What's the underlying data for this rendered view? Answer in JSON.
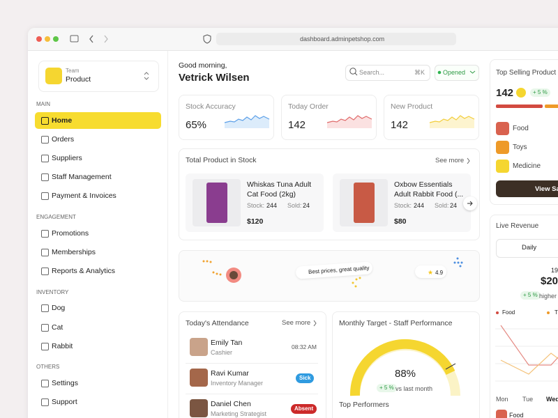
{
  "browser": {
    "url": "dashboard.adminpetshop.com"
  },
  "sidebar": {
    "team_label": "Team",
    "team_name": "Product",
    "sections": [
      {
        "title": "MAIN",
        "items": [
          "Home",
          "Orders",
          "Suppliers",
          "Staff Management",
          "Payment & Invoices"
        ]
      },
      {
        "title": "ENGAGEMENT",
        "items": [
          "Promotions",
          "Memberships",
          "Reports & Analytics"
        ]
      },
      {
        "title": "INVENTORY",
        "items": [
          "Dog",
          "Cat",
          "Rabbit"
        ]
      },
      {
        "title": "OTHERS",
        "items": [
          "Settings",
          "Support"
        ]
      }
    ]
  },
  "header": {
    "greeting": "Good morning,",
    "name": "Vetrick Wilsen",
    "search": "Search...",
    "shortcut": "⌘K",
    "status": "Opened"
  },
  "stats": [
    {
      "label": "Stock Accuracy",
      "value": "65%"
    },
    {
      "label": "Today Order",
      "value": "142"
    },
    {
      "label": "New Product",
      "value": "142"
    }
  ],
  "stock": {
    "title": "Total Product in Stock",
    "link": "See more",
    "products": [
      {
        "name": "Whiskas Tuna Adult Cat Food (2kg)",
        "stock_label": "Stock:",
        "stock": "244",
        "sold_label": "Sold:",
        "sold": "24",
        "price": "$120"
      },
      {
        "name": "Oxbow Essentials Adult Rabbit Food (...",
        "stock_label": "Stock:",
        "stock": "244",
        "sold_label": "Sold:",
        "sold": "24",
        "price": "$80"
      }
    ]
  },
  "banner": {
    "tagline": "Best prices, great quality",
    "rating": "4.9"
  },
  "attendance": {
    "title": "Today's Attendance",
    "link": "See more",
    "staff": [
      {
        "name": "Emily Tan",
        "role": "Cashier",
        "status": "08:32 AM"
      },
      {
        "name": "Ravi Kumar",
        "role": "Inventory Manager",
        "status": "Sick"
      },
      {
        "name": "Daniel Chen",
        "role": "Marketing Strategist",
        "status": "Absent"
      }
    ]
  },
  "target": {
    "title": "Monthly Target - Staff Performance",
    "value": "88%",
    "change": "+ 5 %",
    "compare": "vs last month",
    "subtitle": "Top Performers"
  },
  "top_selling": {
    "title": "Top Selling Product",
    "value": "142",
    "change": "+ 5 %",
    "categories": [
      "Food",
      "Toys",
      "Medicine"
    ],
    "button": "View Sa"
  },
  "revenue": {
    "title": "Live Revenue",
    "tab": "Daily",
    "amount_top": "19",
    "amount": "$20",
    "change": "+ 5 %",
    "note": "higher",
    "legend": [
      "Food",
      "T"
    ],
    "days": [
      "Mon",
      "Tue",
      "Wed"
    ],
    "list": [
      "Food"
    ]
  }
}
